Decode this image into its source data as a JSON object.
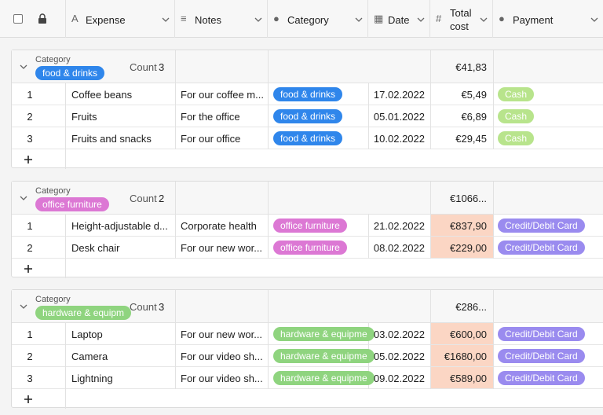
{
  "columns": [
    "Expense",
    "Notes",
    "Category",
    "Date",
    "Total cost",
    "Payment"
  ],
  "groups": [
    {
      "label": "Category",
      "category": "food & drinks",
      "count_label": "Count",
      "count": 3,
      "sum": "€41,83",
      "rows": [
        {
          "index": 1,
          "expense": "Coffee beans",
          "notes": "For our coffee m...",
          "category": "food & drinks",
          "date": "17.02.2022",
          "total": "€5,49",
          "payment": "Cash"
        },
        {
          "index": 2,
          "expense": "Fruits",
          "notes": "For the office",
          "category": "food & drinks",
          "date": "05.01.2022",
          "total": "€6,89",
          "payment": "Cash"
        },
        {
          "index": 3,
          "expense": "Fruits and snacks",
          "notes": "For our office",
          "category": "food & drinks",
          "date": "10.02.2022",
          "total": "€29,45",
          "payment": "Cash"
        }
      ]
    },
    {
      "label": "Category",
      "category": "office furniture",
      "count_label": "Count",
      "count": 2,
      "sum": "€1066...",
      "rows": [
        {
          "index": 1,
          "expense": "Height-adjustable d...",
          "notes": "Corporate health",
          "category": "office furniture",
          "date": "21.02.2022",
          "total": "€837,90",
          "payment": "Credit/Debit Card"
        },
        {
          "index": 2,
          "expense": "Desk chair",
          "notes": "For our new wor...",
          "category": "office furniture",
          "date": "08.02.2022",
          "total": "€229,00",
          "payment": "Credit/Debit Card"
        }
      ]
    },
    {
      "label": "Category",
      "category": "hardware & equipm",
      "count_label": "Count",
      "count": 3,
      "sum": "€286...",
      "rows": [
        {
          "index": 1,
          "expense": "Laptop",
          "notes": "For our new wor...",
          "category": "hardware & equipme",
          "date": "03.02.2022",
          "total": "€600,00",
          "payment": "Credit/Debit Card"
        },
        {
          "index": 2,
          "expense": "Camera",
          "notes": "For our video sh...",
          "category": "hardware & equipme",
          "date": "05.02.2022",
          "total": "€1680,00",
          "payment": "Credit/Debit Card"
        },
        {
          "index": 3,
          "expense": "Lightning",
          "notes": "For our video sh...",
          "category": "hardware & equipme",
          "date": "09.02.2022",
          "total": "€589,00",
          "payment": "Credit/Debit Card"
        }
      ]
    }
  ]
}
